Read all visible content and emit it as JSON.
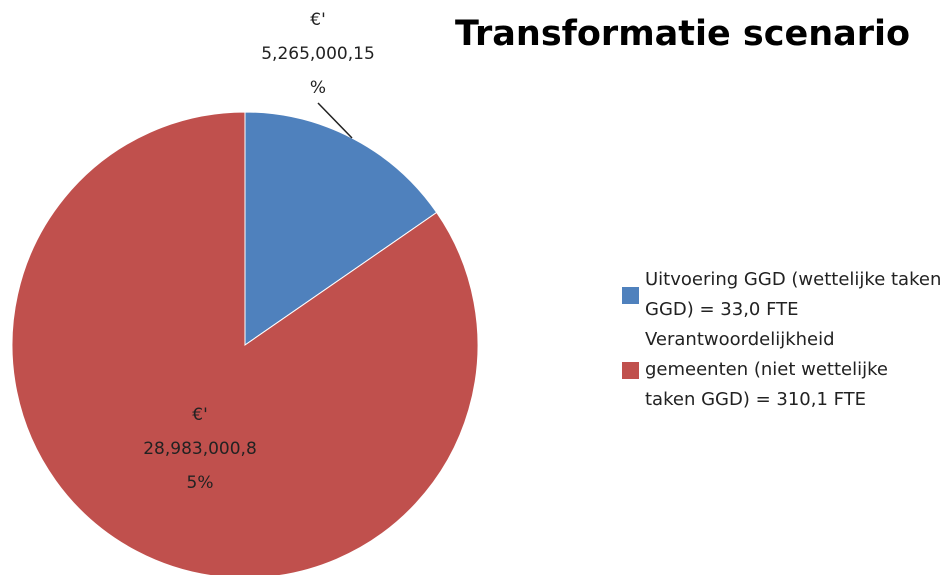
{
  "chart_data": {
    "type": "pie",
    "title": "Transformatie scenario",
    "categories": [
      "Uitvoering GGD (wettelijke taken GGD) = 33,0 FTE",
      "Verantwoordelijkheid gemeenten (niet wettelijke taken GGD) = 310,1 FTE"
    ],
    "values": [
      5265000.15,
      28983000.85
    ],
    "value_labels": [
      [
        "€'",
        "5,265,000,15",
        "%"
      ],
      [
        "€'",
        "28,983,000,8",
        "5%"
      ]
    ],
    "colors": [
      "#4f81bd",
      "#c0504d"
    ],
    "legend": "right"
  }
}
